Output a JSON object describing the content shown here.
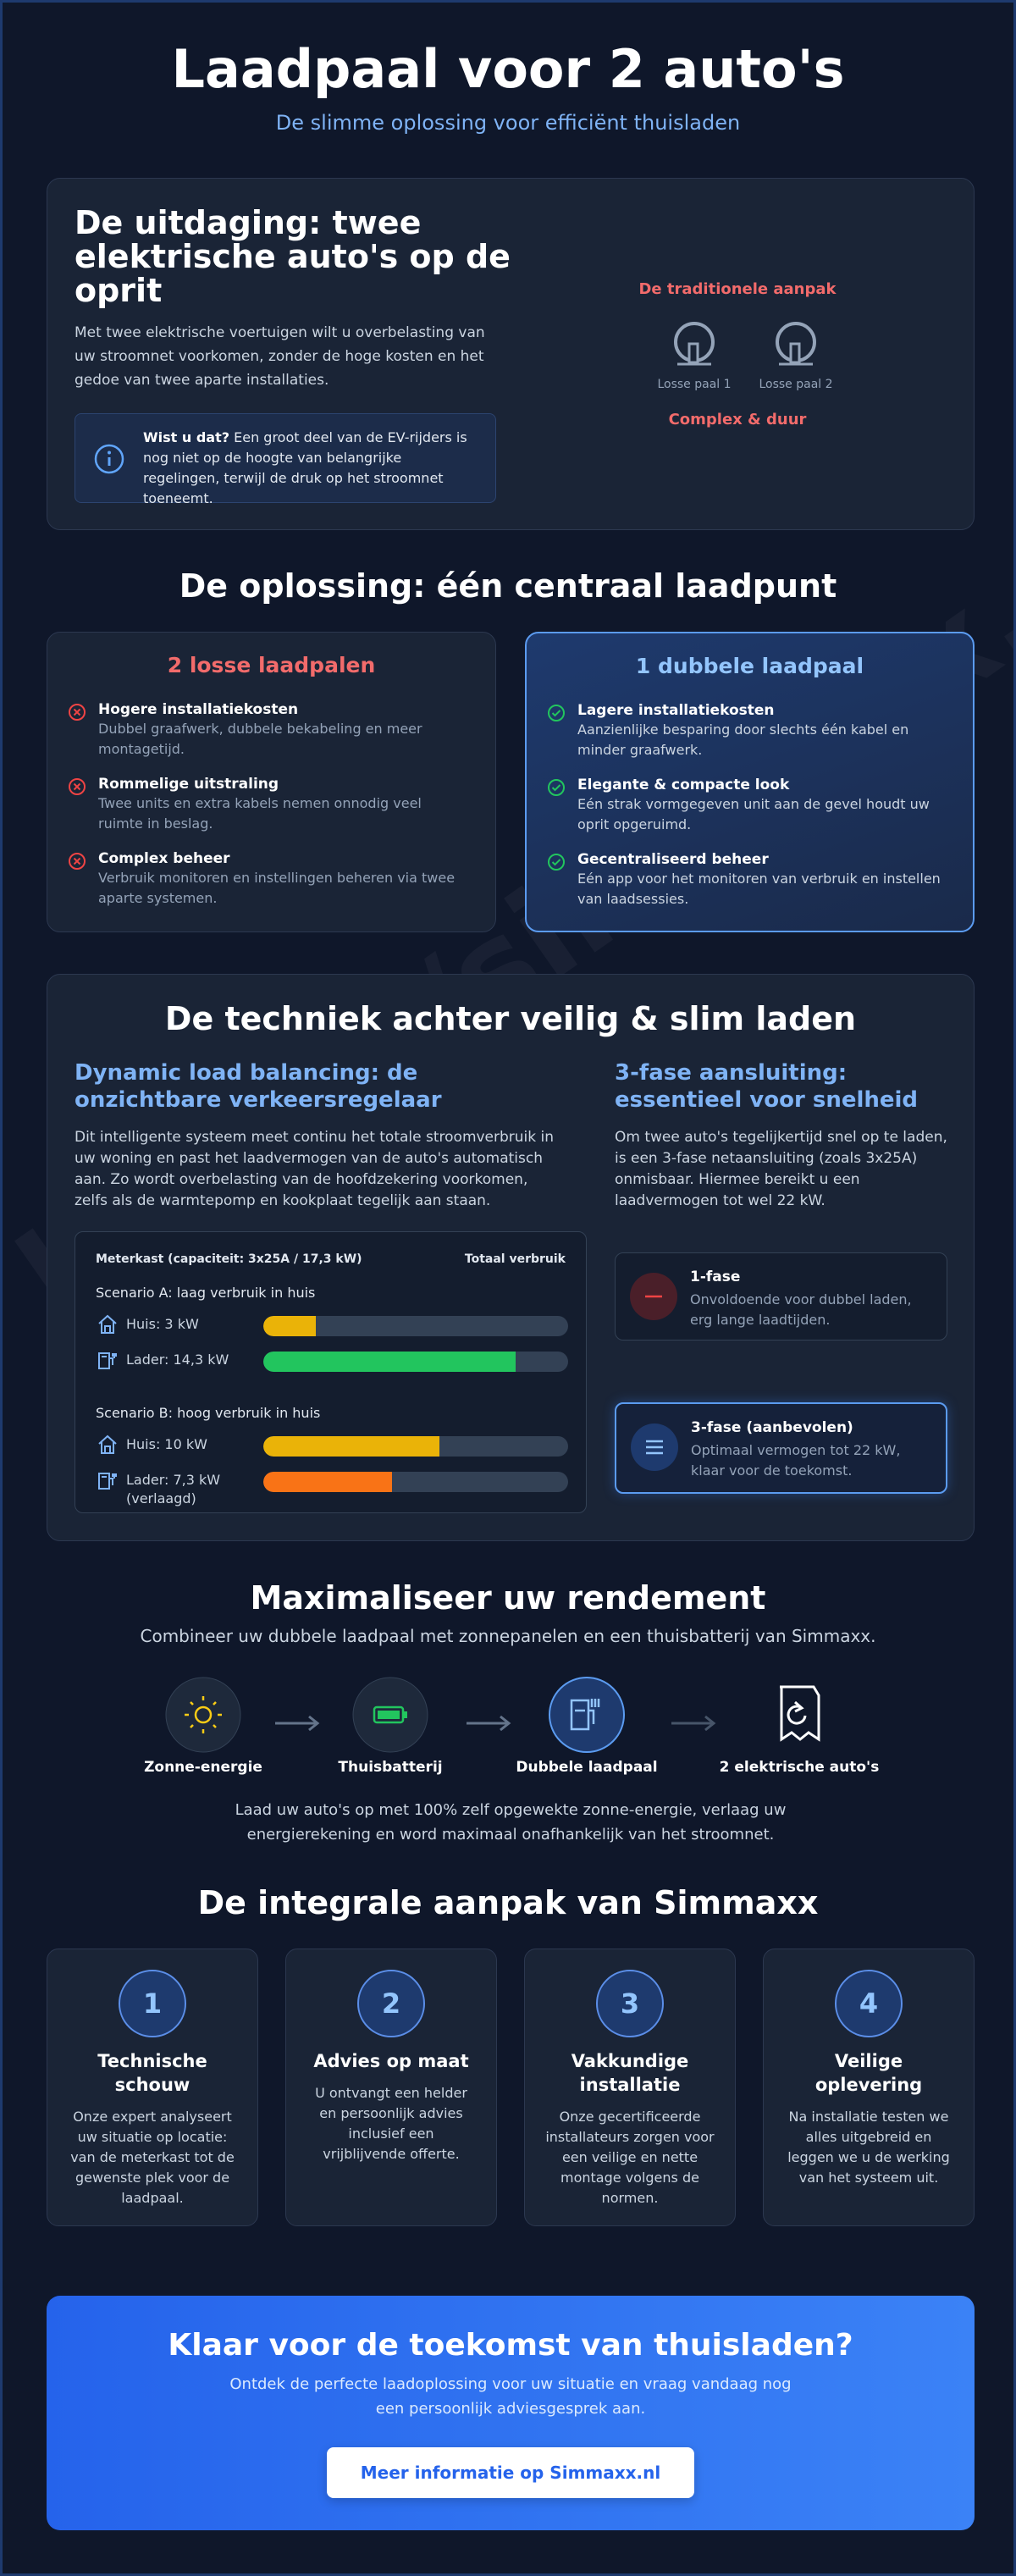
{
  "header": {
    "title": "Laadpaal voor 2 auto's",
    "subtitle": "De slimme oplossing voor efficiënt thuisladen"
  },
  "watermark": "https://simmaxx.nl",
  "challenge": {
    "title": "De uitdaging: twee elektrische auto's op de oprit",
    "text": "Met twee elektrische voertuigen wilt u overbelasting van uw stroomnet voorkomen, zonder de hoge kosten en het gedoe van twee aparte installaties.",
    "info_bold": "Wist u dat?",
    "info_text": "Een groot deel van de EV-rijders is nog niet op de hoogte van belangrijke regelingen, terwijl de druk op het stroomnet toeneemt.",
    "approach_label": "De traditionele aanpak",
    "poles": [
      "Losse paal 1",
      "Losse paal 2"
    ],
    "verdict": "Complex & duur"
  },
  "solution": {
    "title": "De oplossing: één centraal laadpunt",
    "cards": [
      {
        "title": "2 losse laadpalen",
        "items": [
          {
            "title": "Hogere installatiekosten",
            "text": "Dubbel graafwerk, dubbele bekabeling en meer montagetijd."
          },
          {
            "title": "Rommelige uitstraling",
            "text": "Twee units en extra kabels nemen onnodig veel ruimte in beslag."
          },
          {
            "title": "Complex beheer",
            "text": "Verbruik monitoren en instellingen beheren via twee aparte systemen."
          }
        ]
      },
      {
        "title": "1 dubbele laadpaal",
        "items": [
          {
            "title": "Lagere installatiekosten",
            "text": "Aanzienlijke besparing door slechts één kabel en minder graafwerk."
          },
          {
            "title": "Elegante & compacte look",
            "text": "Eén strak vormgegeven unit aan de gevel houdt uw oprit opgeruimd."
          },
          {
            "title": "Gecentraliseerd beheer",
            "text": "Eén app voor het monitoren van verbruik en instellen van laadsessies."
          }
        ]
      }
    ]
  },
  "technique": {
    "title": "De techniek achter veilig & slim laden",
    "dlb": {
      "title": "Dynamic load balancing: de onzichtbare verkeersregelaar",
      "text": "Dit intelligente systeem meet continu het totale stroomverbruik in uw woning en past het laadvermogen van de auto's automatisch aan. Zo wordt overbelasting van de hoofdzekering voorkomen, zelfs als de warmtepomp en kookplaat tegelijk aan staan."
    },
    "meter": {
      "title": "Meterkast (capaciteit: 3x25A / 17,3 kW)",
      "capacity": 17.3,
      "total_label": "Totaal verbruik",
      "scenarios": [
        {
          "title": "Scenario A: laag verbruik in huis",
          "rows": [
            {
              "label": "Huis: 3 kW",
              "value": 3,
              "color": "#eab308"
            },
            {
              "label": "Lader: 14,3 kW",
              "value": 14.3,
              "color": "#22c55e"
            }
          ]
        },
        {
          "title": "Scenario B: hoog verbruik in huis",
          "rows": [
            {
              "label": "Huis: 10 kW",
              "value": 10,
              "color": "#eab308"
            },
            {
              "label": "Lader: 7,3 kW (verlaagd)",
              "value": 7.3,
              "color": "#f97316"
            }
          ]
        }
      ]
    },
    "phase": {
      "title": "3-fase aansluiting: essentieel voor snelheid",
      "text": "Om twee auto's tegelijkertijd snel op te laden, is een 3-fase netaansluiting (zoals 3x25A) onmisbaar. Hiermee bereikt u een laadvermogen tot wel 22 kW.",
      "options": [
        {
          "title": "1-fase",
          "text": "Onvoldoende voor dubbel laden, erg lange laadtijden."
        },
        {
          "title": "3-fase (aanbevolen)",
          "text": "Optimaal vermogen tot 22 kW, klaar voor de toekomst."
        }
      ]
    }
  },
  "maximize": {
    "title": "Maximaliseer uw rendement",
    "subtitle": "Combineer uw dubbele laadpaal met zonnepanelen en een thuisbatterij van Simmaxx.",
    "steps": [
      "Zonne-energie",
      "Thuisbatterij",
      "Dubbele laadpaal",
      "2 elektrische auto's"
    ],
    "text": "Laad uw auto's op met 100% zelf opgewekte zonne-energie, verlaag uw energierekening en word maximaal onafhankelijk van het stroomnet."
  },
  "approach": {
    "title": "De integrale aanpak van Simmaxx",
    "steps": [
      {
        "number": "1",
        "title": "Technische schouw",
        "text": "Onze expert analyseert uw situatie op locatie: van de meterkast tot de gewenste plek voor de laadpaal."
      },
      {
        "number": "2",
        "title": "Advies op maat",
        "text": "U ontvangt een helder en persoonlijk advies inclusief een vrijblijvende offerte."
      },
      {
        "number": "3",
        "title": "Vakkundige installatie",
        "text": "Onze gecertificeerde installateurs zorgen voor een veilige en nette montage volgens de normen."
      },
      {
        "number": "4",
        "title": "Veilige oplevering",
        "text": "Na installatie testen we alles uitgebreid en leggen we u de werking van het systeem uit."
      }
    ]
  },
  "cta": {
    "title": "Klaar voor de toekomst van thuisladen?",
    "text": "Ontdek de perfecte laadoplossing voor uw situatie en vraag vandaag nog een persoonlijk adviesgesprek aan.",
    "button": "Meer informatie op Simmaxx.nl"
  }
}
